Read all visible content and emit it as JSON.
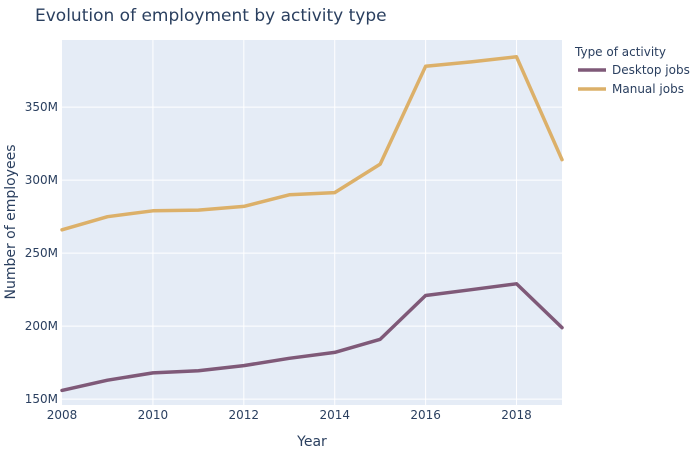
{
  "chart_data": {
    "type": "line",
    "title": "Evolution of employment by activity type",
    "xlabel": "Year",
    "ylabel": "Number of employees",
    "x": [
      2008,
      2009,
      2010,
      2011,
      2012,
      2013,
      2014,
      2015,
      2016,
      2017,
      2018,
      2019
    ],
    "xlim": [
      2008,
      2019
    ],
    "ylim": [
      146000000,
      396000000
    ],
    "xticks": [
      2008,
      2010,
      2012,
      2014,
      2016,
      2018
    ],
    "xtick_labels": [
      "2008",
      "2010",
      "2012",
      "2014",
      "2016",
      "2018"
    ],
    "yticks": [
      150000000,
      200000000,
      250000000,
      300000000,
      350000000
    ],
    "ytick_labels": [
      "150M",
      "200M",
      "250M",
      "300M",
      "350M"
    ],
    "grid": true,
    "legend_title": "Type of activity",
    "legend_position": "top-right",
    "series": [
      {
        "name": "Desktop jobs",
        "color": "#7f5978",
        "values": [
          156000000,
          163000000,
          168000000,
          169500000,
          173000000,
          178000000,
          182000000,
          191000000,
          221000000,
          225000000,
          229000000,
          199000000
        ]
      },
      {
        "name": "Manual jobs",
        "color": "#dcb069",
        "values": [
          266000000,
          275000000,
          279000000,
          279500000,
          282000000,
          290000000,
          291500000,
          311000000,
          378000000,
          381000000,
          384500000,
          314000000
        ]
      }
    ]
  }
}
